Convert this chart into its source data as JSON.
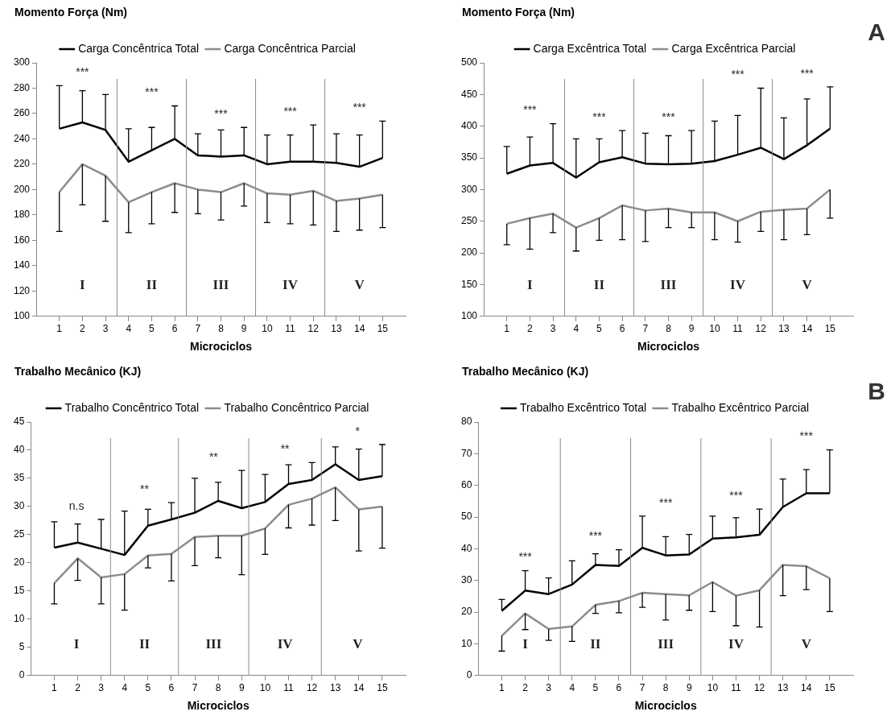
{
  "chart_data": [
    {
      "type": "line",
      "xlabel": "Microciclos",
      "ylabel": "Momento Força (Nm)",
      "x": [
        1,
        2,
        3,
        4,
        5,
        6,
        7,
        8,
        9,
        10,
        11,
        12,
        13,
        14,
        15
      ],
      "xlim": [
        0,
        16
      ],
      "xticks": [
        1,
        2,
        3,
        4,
        5,
        6,
        7,
        8,
        9,
        10,
        11,
        12,
        13,
        14,
        15
      ],
      "ylim": [
        100,
        300
      ],
      "yticks": [
        100,
        120,
        140,
        160,
        180,
        200,
        220,
        240,
        260,
        280,
        300
      ],
      "grid": false,
      "legend": "top",
      "marker": "none",
      "line_style": "solid",
      "series": [
        {
          "name": "Carga Concêntrica Total",
          "color": "#000000",
          "values": [
            248,
            253,
            247,
            222,
            231,
            240,
            227,
            226,
            227,
            220,
            222,
            222,
            221,
            218,
            225
          ],
          "errors": [
            [
              248,
              282
            ],
            [
              253,
              278
            ],
            [
              247,
              275
            ],
            [
              222,
              248
            ],
            [
              231,
              249
            ],
            [
              240,
              266
            ],
            [
              227,
              244
            ],
            [
              226,
              247
            ],
            [
              227,
              249
            ],
            [
              220,
              243
            ],
            [
              222,
              243
            ],
            [
              222,
              251
            ],
            [
              221,
              244
            ],
            [
              218,
              243
            ],
            [
              225,
              254
            ]
          ]
        },
        {
          "name": "Carga Concêntrica Parcial",
          "color": "#8c8c8c",
          "values": [
            198,
            220,
            211,
            190,
            198,
            205,
            200,
            198,
            205,
            197,
            196,
            199,
            191,
            193,
            196
          ],
          "errors": [
            [
              167,
              198
            ],
            [
              188,
              220
            ],
            [
              175,
              211
            ],
            [
              166,
              190
            ],
            [
              173,
              198
            ],
            [
              182,
              205
            ],
            [
              181,
              200
            ],
            [
              176,
              198
            ],
            [
              187,
              205
            ],
            [
              174,
              197
            ],
            [
              173,
              196
            ],
            [
              172,
              199
            ],
            [
              167,
              191
            ],
            [
              168,
              193
            ],
            [
              170,
              196
            ]
          ]
        }
      ],
      "ref_lines": [
        {
          "axis": "x",
          "value": 3.5,
          "color": "#8c8c8c"
        },
        {
          "axis": "x",
          "value": 6.5,
          "color": "#8c8c8c"
        },
        {
          "axis": "x",
          "value": 9.5,
          "color": "#8c8c8c"
        },
        {
          "axis": "x",
          "value": 12.5,
          "color": "#8c8c8c"
        }
      ],
      "annotations": [
        "***",
        "***",
        "***",
        "***",
        "***",
        "I",
        "II",
        "III",
        "IV",
        "V"
      ]
    },
    {
      "type": "line",
      "xlabel": "Microciclos",
      "ylabel": "Momento Força (Nm)",
      "x": [
        1,
        2,
        3,
        4,
        5,
        6,
        7,
        8,
        9,
        10,
        11,
        12,
        13,
        14,
        15
      ],
      "xlim": [
        0,
        16
      ],
      "xticks": [
        1,
        2,
        3,
        4,
        5,
        6,
        7,
        8,
        9,
        10,
        11,
        12,
        13,
        14,
        15
      ],
      "ylim": [
        100,
        500
      ],
      "yticks": [
        100,
        150,
        200,
        250,
        300,
        350,
        400,
        450,
        500
      ],
      "grid": false,
      "legend": "top",
      "marker": "none",
      "line_style": "solid",
      "series": [
        {
          "name": "Carga Excêntrica Total",
          "color": "#000000",
          "values": [
            325,
            338,
            342,
            319,
            343,
            351,
            341,
            340,
            341,
            345,
            355,
            366,
            348,
            370,
            396
          ],
          "errors": [
            [
              325,
              368
            ],
            [
              338,
              383
            ],
            [
              342,
              404
            ],
            [
              319,
              380
            ],
            [
              343,
              380
            ],
            [
              351,
              393
            ],
            [
              341,
              389
            ],
            [
              340,
              385
            ],
            [
              341,
              393
            ],
            [
              345,
              408
            ],
            [
              355,
              417
            ],
            [
              366,
              460
            ],
            [
              348,
              413
            ],
            [
              370,
              443
            ],
            [
              396,
              462
            ]
          ]
        },
        {
          "name": "Carga Excêntrica Parcial",
          "color": "#8c8c8c",
          "values": [
            246,
            255,
            262,
            240,
            255,
            275,
            267,
            270,
            264,
            264,
            250,
            265,
            268,
            270,
            300
          ],
          "errors": [
            [
              213,
              246
            ],
            [
              206,
              255
            ],
            [
              232,
              262
            ],
            [
              203,
              240
            ],
            [
              220,
              255
            ],
            [
              221,
              275
            ],
            [
              218,
              267
            ],
            [
              240,
              270
            ],
            [
              240,
              264
            ],
            [
              221,
              264
            ],
            [
              217,
              250
            ],
            [
              234,
              265
            ],
            [
              221,
              268
            ],
            [
              229,
              270
            ],
            [
              255,
              300
            ]
          ]
        }
      ],
      "ref_lines": [
        {
          "axis": "x",
          "value": 3.5,
          "color": "#8c8c8c"
        },
        {
          "axis": "x",
          "value": 6.5,
          "color": "#8c8c8c"
        },
        {
          "axis": "x",
          "value": 9.5,
          "color": "#8c8c8c"
        },
        {
          "axis": "x",
          "value": 12.5,
          "color": "#8c8c8c"
        }
      ],
      "annotations": [
        "***",
        "***",
        "***",
        "***",
        "***",
        "I",
        "II",
        "III",
        "IV",
        "V",
        "A"
      ]
    },
    {
      "type": "line",
      "xlabel": "Microciclos",
      "ylabel": "Trabalho Mecânico (KJ)",
      "x": [
        1,
        2,
        3,
        4,
        5,
        6,
        7,
        8,
        9,
        10,
        11,
        12,
        13,
        14,
        15
      ],
      "xlim": [
        0,
        16
      ],
      "xticks": [
        1,
        2,
        3,
        4,
        5,
        6,
        7,
        8,
        9,
        10,
        11,
        12,
        13,
        14,
        15
      ],
      "ylim": [
        0,
        45
      ],
      "yticks": [
        0,
        5,
        10,
        15,
        20,
        25,
        30,
        35,
        40,
        45
      ],
      "grid": false,
      "legend": "top",
      "marker": "none",
      "line_style": "solid",
      "series": [
        {
          "name": "Trabalho Concêntrico Total",
          "color": "#000000",
          "values": [
            22.7,
            23.6,
            22.5,
            21.4,
            26.6,
            27.7,
            28.9,
            31,
            29.7,
            30.8,
            34,
            34.7,
            37.5,
            34.7,
            35.4
          ],
          "errors": [
            [
              22.7,
              27.3
            ],
            [
              23.6,
              26.9
            ],
            [
              22.5,
              27.7
            ],
            [
              21.4,
              29.2
            ],
            [
              26.6,
              29.5
            ],
            [
              27.7,
              30.7
            ],
            [
              28.9,
              35
            ],
            [
              31,
              34.3
            ],
            [
              29.7,
              36.4
            ],
            [
              30.8,
              35.7
            ],
            [
              34,
              37.4
            ],
            [
              34.7,
              37.8
            ],
            [
              37.5,
              40.6
            ],
            [
              34.7,
              40.2
            ],
            [
              35.4,
              41
            ]
          ]
        },
        {
          "name": "Trabalho Concêntrico Parcial",
          "color": "#8c8c8c",
          "values": [
            16.4,
            20.8,
            17.4,
            18,
            21.3,
            21.6,
            24.6,
            24.8,
            24.8,
            26.1,
            30.3,
            31.4,
            33.4,
            29.5,
            30
          ],
          "errors": [
            [
              12.7,
              16.4
            ],
            [
              16.9,
              20.8
            ],
            [
              12.7,
              17.4
            ],
            [
              11.6,
              18
            ],
            [
              19.1,
              21.3
            ],
            [
              16.8,
              21.6
            ],
            [
              19.5,
              24.6
            ],
            [
              20.9,
              24.8
            ],
            [
              17.9,
              24.8
            ],
            [
              21.5,
              26.1
            ],
            [
              26.2,
              30.3
            ],
            [
              26.7,
              31.4
            ],
            [
              27.5,
              33.4
            ],
            [
              22.1,
              29.5
            ],
            [
              22.6,
              30
            ]
          ]
        }
      ],
      "ref_lines": [
        {
          "axis": "x",
          "value": 3.4,
          "color": "#8c8c8c"
        },
        {
          "axis": "x",
          "value": 6.3,
          "color": "#8c8c8c"
        },
        {
          "axis": "x",
          "value": 9.3,
          "color": "#8c8c8c"
        },
        {
          "axis": "x",
          "value": 12.4,
          "color": "#8c8c8c"
        }
      ],
      "annotations": [
        "n.s",
        "**",
        "**",
        "**",
        "*",
        "I",
        "II",
        "III",
        "IV",
        "V"
      ]
    },
    {
      "type": "line",
      "xlabel": "Microciclos",
      "ylabel": "Trabalho Mecânico (KJ)",
      "x": [
        1,
        2,
        3,
        4,
        5,
        6,
        7,
        8,
        9,
        10,
        11,
        12,
        13,
        14,
        15
      ],
      "xlim": [
        0,
        16
      ],
      "xticks": [
        1,
        2,
        3,
        4,
        5,
        6,
        7,
        8,
        9,
        10,
        11,
        12,
        13,
        14,
        15
      ],
      "ylim": [
        0,
        80
      ],
      "yticks": [
        0,
        10,
        20,
        30,
        40,
        50,
        60,
        70,
        80
      ],
      "grid": false,
      "legend": "top",
      "marker": "none",
      "line_style": "solid",
      "series": [
        {
          "name": "Trabalho Excêntrico Total",
          "color": "#000000",
          "values": [
            20.4,
            26.8,
            25.7,
            28.7,
            34.9,
            34.6,
            40.3,
            37.9,
            38.2,
            43.2,
            43.6,
            44.4,
            53.2,
            57.5,
            57.5
          ],
          "errors": [
            [
              20.4,
              24
            ],
            [
              26.8,
              33.1
            ],
            [
              25.7,
              30.8
            ],
            [
              28.7,
              36.2
            ],
            [
              34.9,
              38.4
            ],
            [
              34.6,
              39.7
            ],
            [
              40.3,
              50.3
            ],
            [
              37.9,
              43.8
            ],
            [
              38.2,
              44.5
            ],
            [
              43.2,
              50.3
            ],
            [
              43.6,
              49.8
            ],
            [
              44.4,
              52.5
            ],
            [
              53.2,
              62
            ],
            [
              57.5,
              65
            ],
            [
              57.5,
              71.2
            ]
          ]
        },
        {
          "name": "Trabalho Excêntrico Parcial",
          "color": "#8c8c8c",
          "values": [
            12.5,
            19.6,
            14.7,
            15.5,
            22.3,
            23.5,
            26.1,
            25.7,
            25.3,
            29.5,
            25.2,
            26.9,
            34.9,
            34.5,
            30.7
          ],
          "errors": [
            [
              7.7,
              12.5
            ],
            [
              14.5,
              19.6
            ],
            [
              11.1,
              14.7
            ],
            [
              10.8,
              15.5
            ],
            [
              19.6,
              22.3
            ],
            [
              19.8,
              23.5
            ],
            [
              21.5,
              26.1
            ],
            [
              17.5,
              25.7
            ],
            [
              20.6,
              25.3
            ],
            [
              20.2,
              29.5
            ],
            [
              15.7,
              25.2
            ],
            [
              15.3,
              26.9
            ],
            [
              25.2,
              34.9
            ],
            [
              27.1,
              34.5
            ],
            [
              20.2,
              30.7
            ]
          ]
        }
      ],
      "ref_lines": [
        {
          "axis": "x",
          "value": 3.5,
          "color": "#8c8c8c"
        },
        {
          "axis": "x",
          "value": 6.5,
          "color": "#8c8c8c"
        },
        {
          "axis": "x",
          "value": 9.5,
          "color": "#8c8c8c"
        },
        {
          "axis": "x",
          "value": 12.5,
          "color": "#8c8c8c"
        }
      ],
      "annotations": [
        "***",
        "***",
        "***",
        "***",
        "***",
        "I",
        "II",
        "III",
        "IV",
        "V",
        "B"
      ]
    }
  ]
}
